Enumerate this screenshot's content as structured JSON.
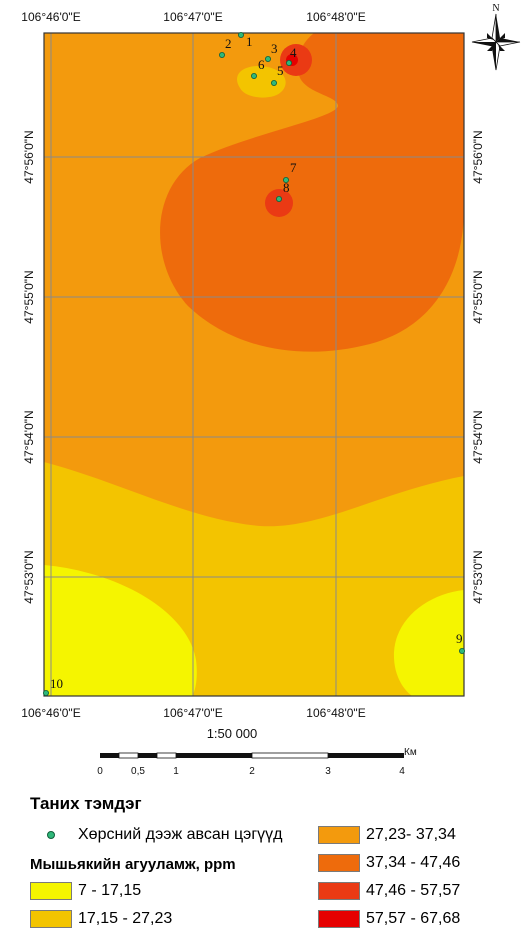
{
  "map": {
    "top_ticks": [
      "106°46'0\"E",
      "106°47'0\"E",
      "106°48'0\"E"
    ],
    "bottom_ticks": [
      "106°46'0\"E",
      "106°47'0\"E",
      "106°48'0\"E"
    ],
    "left_ticks": [
      "47°56'0\"N",
      "47°55'0\"N",
      "47°54'0\"N",
      "47°53'0\"N"
    ],
    "right_ticks": [
      "47°56'0\"N",
      "47°55'0\"N",
      "47°54'0\"N",
      "47°53'0\"N"
    ],
    "north_label": "N",
    "sample_points": [
      "1",
      "2",
      "3",
      "4",
      "5",
      "6",
      "7",
      "8",
      "9",
      "10"
    ],
    "colors": {
      "class1": "#f5f500",
      "class2": "#f3c400",
      "class3": "#f39a0d",
      "class4": "#ee6b0c",
      "class5": "#ea3a14",
      "class6": "#e60000",
      "point": "#2fb87a",
      "grid": "#8a8a8a"
    }
  },
  "scale": {
    "ratio": "1:50 000",
    "unit": "Км",
    "ticks": [
      "0",
      "0,5",
      "1",
      "2",
      "3",
      "4"
    ]
  },
  "legend": {
    "title": "Таних тэмдэг",
    "points_label": "Хөрсний дээж авсан цэгүүд",
    "subtitle": "Мышьякийн агууламж, ppm",
    "classes": [
      "7 - 17,15",
      "17,15 - 27,23",
      "27,23- 37,34",
      "37,34 - 47,46",
      "47,46 - 57,57",
      "57,57 - 67,68"
    ]
  }
}
